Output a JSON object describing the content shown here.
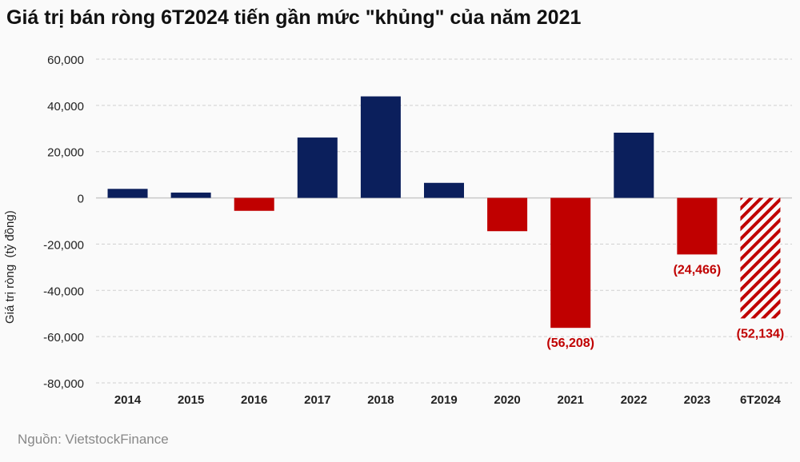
{
  "chart_data": {
    "type": "bar",
    "title": "Giá trị bán ròng 6T2024 tiến gần mức \"khủng\" của năm 2021",
    "ylabel": "Giá trị ròng  (tỷ đồng)",
    "xlabel": "",
    "ylim": [
      -80000,
      60000
    ],
    "yticks": [
      60000,
      40000,
      20000,
      0,
      -20000,
      -40000,
      -60000,
      -80000
    ],
    "ytick_labels": [
      "60,000",
      "40,000",
      "20,000",
      "0",
      "-20,000",
      "-40,000",
      "-60,000",
      "-80,000"
    ],
    "grid": true,
    "categories": [
      "2014",
      "2015",
      "2016",
      "2017",
      "2018",
      "2019",
      "2020",
      "2021",
      "2022",
      "2023",
      "6T2024"
    ],
    "values": [
      3900,
      2300,
      -5600,
      26100,
      43900,
      6500,
      -14400,
      -56208,
      28200,
      -24466,
      -52134
    ],
    "data_labels": {
      "7": "(56,208)",
      "9": "(24,466)",
      "10": "(52,134)"
    },
    "hatched": [
      "6T2024"
    ],
    "colors": {
      "positive": "#0b1f5c",
      "negative": "#c00000"
    }
  },
  "source": "Nguồn: VietstockFinance"
}
